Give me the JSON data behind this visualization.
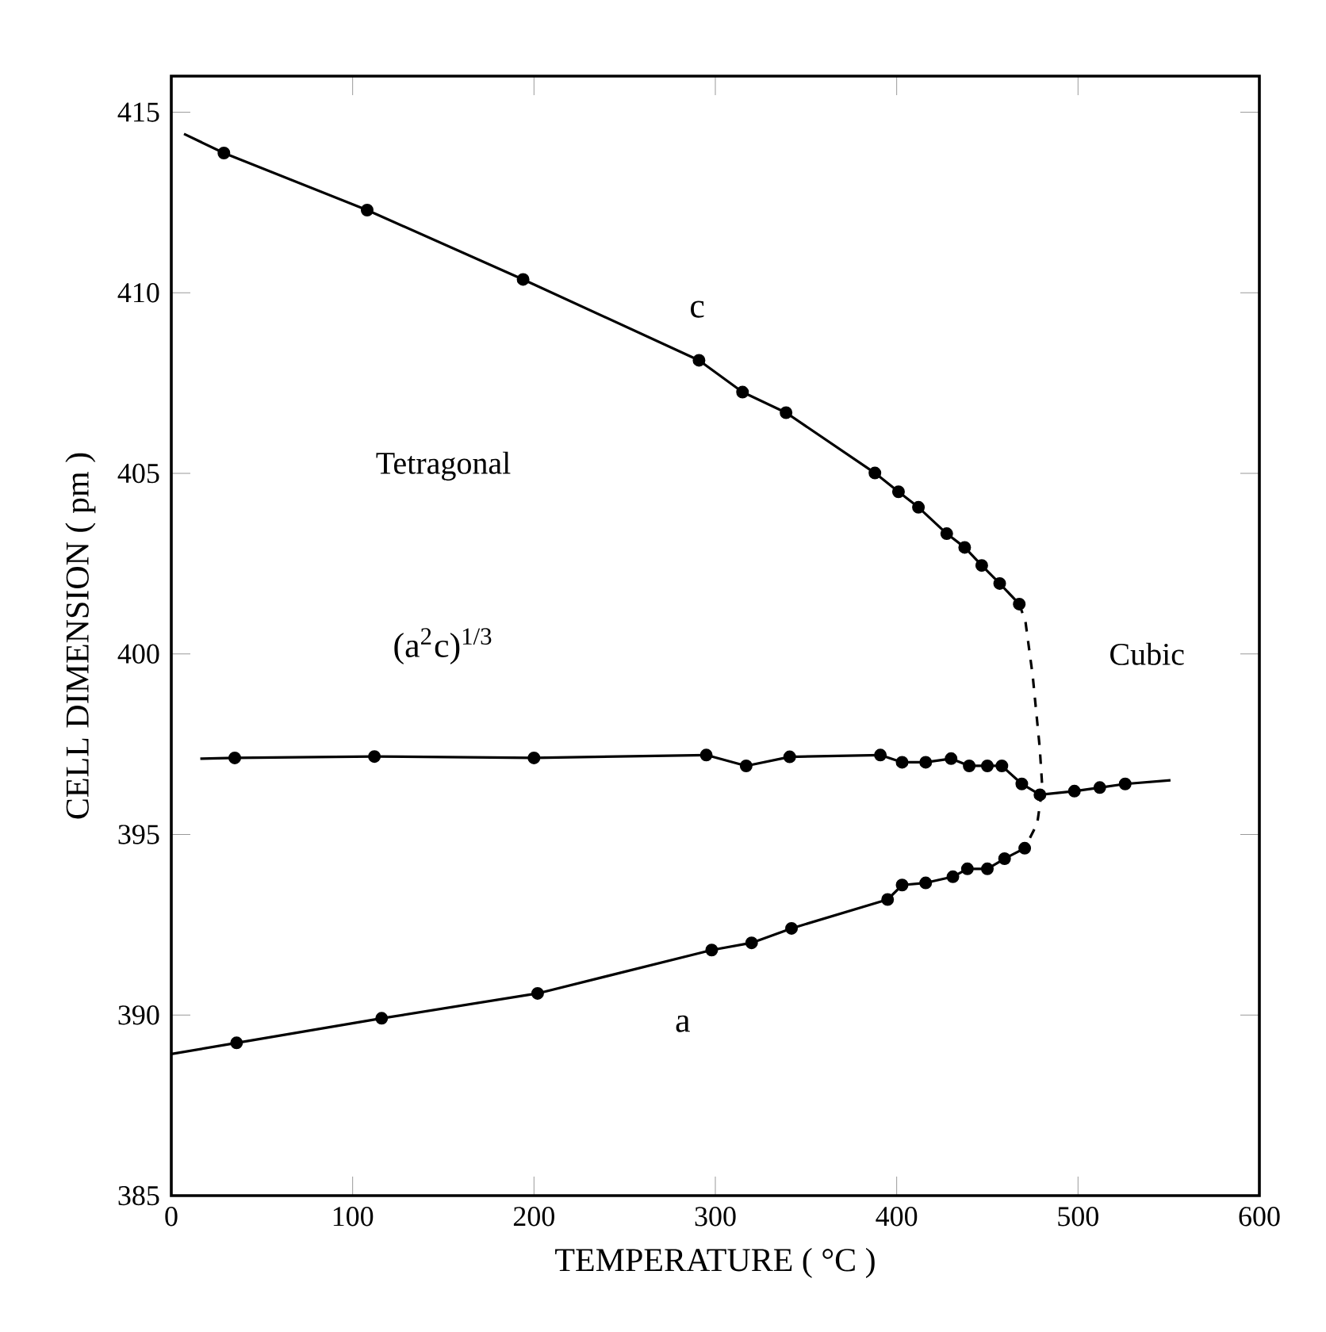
{
  "chart_data": {
    "type": "line",
    "xlabel": "TEMPERATURE ( °C )",
    "ylabel": "CELL DIMENSION ( pm )",
    "xlim": [
      0,
      600
    ],
    "ylim": [
      385,
      416
    ],
    "xticks": [
      0,
      100,
      200,
      300,
      400,
      500,
      600
    ],
    "yticks": [
      385,
      390,
      395,
      400,
      405,
      410,
      415
    ],
    "annotations": [
      "Tetragonal",
      "Cubic"
    ],
    "series": [
      {
        "name": "c",
        "color": "#000000",
        "marker": "none",
        "line_style": "solid",
        "x": [
          7,
          29,
          108,
          194,
          291,
          315,
          339,
          388,
          401,
          412,
          427.6,
          437.5,
          446.9,
          456.8,
          467.6
        ],
        "values": [
          414.4,
          413.87,
          412.29,
          410.37,
          408.13,
          407.25,
          406.68,
          405.01,
          404.49,
          404.06,
          403.33,
          402.95,
          402.45,
          401.95,
          401.38
        ]
      },
      {
        "type": "scatter",
        "color": "#000000",
        "marker": "circle",
        "x": [
          29,
          108,
          194,
          291,
          315,
          339,
          388,
          401,
          412,
          427.6,
          437.5,
          446.9,
          456.8,
          467.6
        ],
        "values": [
          413.87,
          412.29,
          410.37,
          408.13,
          407.25,
          406.68,
          405.01,
          404.49,
          404.06,
          403.33,
          402.95,
          402.45,
          401.95,
          401.38
        ]
      },
      {
        "name": "(a$^{2}$c)$^{1/3}$",
        "color": "#000000",
        "marker": "none",
        "line_style": "solid",
        "x": [
          16,
          35,
          112,
          200,
          295,
          317,
          341,
          391,
          403,
          416,
          430,
          440,
          450,
          458,
          469,
          479,
          498,
          512,
          526,
          551
        ],
        "values": [
          397.1,
          397.12,
          397.16,
          397.12,
          397.2,
          396.9,
          397.15,
          397.2,
          397.0,
          397.0,
          397.1,
          396.9,
          396.9,
          396.9,
          396.4,
          396.1,
          396.2,
          396.3,
          396.4,
          396.5
        ]
      },
      {
        "type": "scatter",
        "color": "#000000",
        "marker": "circle",
        "x": [
          35,
          112,
          200,
          295,
          317,
          341,
          391,
          403,
          416,
          430,
          440,
          450,
          458,
          469,
          479,
          498,
          512,
          526
        ],
        "values": [
          397.12,
          397.16,
          397.12,
          397.2,
          396.9,
          397.15,
          397.2,
          397.0,
          397.0,
          397.1,
          396.9,
          396.9,
          396.9,
          396.4,
          396.1,
          396.2,
          396.3,
          396.4
        ]
      },
      {
        "name": "a",
        "color": "#000000",
        "marker": "none",
        "line_style": "solid",
        "x": [
          0,
          36,
          116,
          202,
          298,
          320,
          342,
          395,
          403,
          416,
          431,
          439,
          450,
          459.5,
          470.6
        ],
        "values": [
          388.92,
          389.23,
          389.91,
          390.6,
          391.8,
          392.0,
          392.4,
          393.2,
          393.6,
          393.66,
          393.83,
          394.05,
          394.05,
          394.33,
          394.62
        ]
      },
      {
        "type": "scatter",
        "color": "#000000",
        "marker": "circle",
        "x": [
          36,
          116,
          202,
          298,
          320,
          342,
          395,
          403,
          416,
          431,
          439,
          450,
          459.5,
          470.6
        ],
        "values": [
          389.23,
          389.91,
          390.6,
          391.8,
          392.0,
          392.4,
          393.2,
          393.6,
          393.66,
          393.83,
          394.05,
          394.05,
          394.33,
          394.62
        ]
      },
      {
        "color": "#000000",
        "marker": "none",
        "line_style": "dashed",
        "x": [
          467.6,
          471,
          475,
          478.9,
          480.3,
          477.5,
          470.6
        ],
        "values": [
          401.38,
          400.9,
          399.4,
          397.4,
          396.3,
          395.3,
          394.62
        ]
      }
    ]
  }
}
